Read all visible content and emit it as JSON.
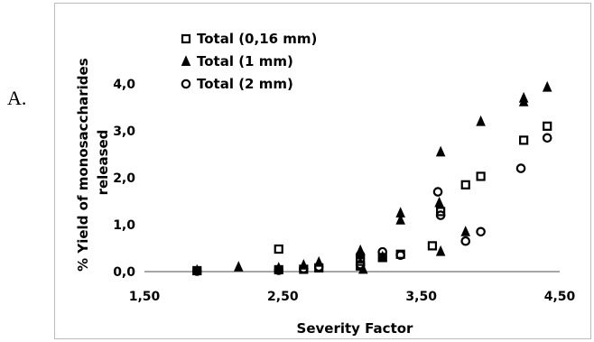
{
  "panel_label": "A.",
  "chart_data": {
    "type": "scatter",
    "xlabel": "Severity Factor",
    "ylabel_lines": [
      "% Yield of monosaccharides",
      "released"
    ],
    "xlim": [
      1.5,
      4.5
    ],
    "ylim": [
      0,
      4
    ],
    "x_ticks": [
      1.5,
      2.5,
      3.5,
      4.5
    ],
    "x_tick_labels": [
      "1,50",
      "2,50",
      "3,50",
      "4,50"
    ],
    "y_ticks": [
      0,
      1,
      2,
      3,
      4
    ],
    "y_tick_labels": [
      "0,0",
      "1,0",
      "2,0",
      "3,0",
      "4,0"
    ],
    "grid": false,
    "legend_position": "top-left",
    "series": [
      {
        "name": "Total (0,16 mm)",
        "marker": "square",
        "points": [
          [
            1.88,
            0.02
          ],
          [
            2.47,
            0.48
          ],
          [
            2.47,
            0.04
          ],
          [
            2.65,
            0.05
          ],
          [
            2.76,
            0.08
          ],
          [
            3.06,
            0.22
          ],
          [
            3.06,
            0.12
          ],
          [
            3.22,
            0.3
          ],
          [
            3.35,
            0.37
          ],
          [
            3.58,
            0.55
          ],
          [
            3.64,
            1.28
          ],
          [
            3.82,
            1.85
          ],
          [
            3.93,
            2.03
          ],
          [
            4.24,
            2.8
          ],
          [
            4.41,
            3.1
          ]
        ]
      },
      {
        "name": "Total (1 mm)",
        "marker": "triangle",
        "points": [
          [
            1.88,
            0.03
          ],
          [
            2.18,
            0.1
          ],
          [
            2.47,
            0.08
          ],
          [
            2.65,
            0.14
          ],
          [
            2.76,
            0.2
          ],
          [
            3.06,
            0.45
          ],
          [
            3.06,
            0.38
          ],
          [
            3.08,
            0.05
          ],
          [
            3.22,
            0.32
          ],
          [
            3.35,
            1.25
          ],
          [
            3.35,
            1.1
          ],
          [
            3.64,
            2.55
          ],
          [
            3.63,
            1.47
          ],
          [
            3.64,
            0.43
          ],
          [
            3.82,
            0.85
          ],
          [
            3.93,
            3.2
          ],
          [
            4.24,
            3.7
          ],
          [
            4.24,
            3.62
          ],
          [
            4.41,
            3.93
          ]
        ]
      },
      {
        "name": "Total (2 mm)",
        "marker": "circle",
        "points": [
          [
            1.88,
            0.01
          ],
          [
            2.47,
            0.03
          ],
          [
            2.65,
            0.06
          ],
          [
            2.76,
            0.1
          ],
          [
            3.06,
            0.35
          ],
          [
            3.06,
            0.15
          ],
          [
            3.22,
            0.42
          ],
          [
            3.35,
            0.35
          ],
          [
            3.62,
            1.7
          ],
          [
            3.64,
            1.2
          ],
          [
            3.82,
            0.65
          ],
          [
            3.93,
            0.85
          ],
          [
            4.22,
            2.2
          ],
          [
            4.41,
            2.85
          ]
        ]
      }
    ]
  },
  "colors": {
    "marker_stroke": "#000000",
    "axis": "#888888",
    "border": "#bbbbbb"
  }
}
